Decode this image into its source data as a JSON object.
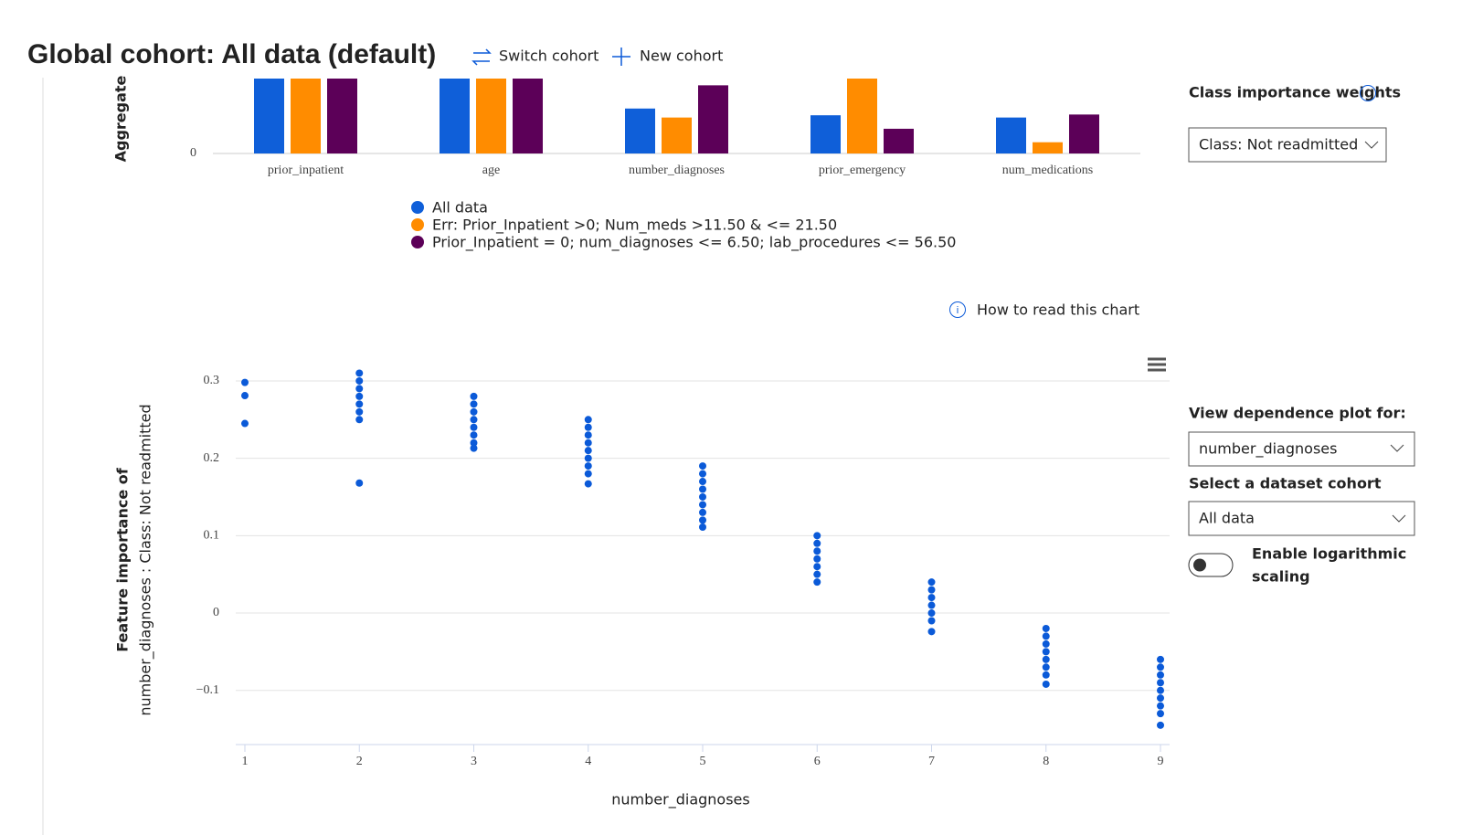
{
  "header": {
    "title": "Global cohort: All data (default)",
    "switch_cohort": "Switch cohort",
    "new_cohort": "New cohort"
  },
  "chart_data": [
    {
      "type": "bar",
      "y_label": "Aggregate",
      "categories": [
        "prior_inpatient",
        "age",
        "number_diagnoses",
        "prior_emergency",
        "num_medications"
      ],
      "ylim": [
        0,
        1
      ],
      "yticks": [
        0
      ],
      "series": [
        {
          "name": "All data",
          "color": "#0f5fd9",
          "values": [
            1,
            1,
            0.6,
            0.51,
            0.48
          ]
        },
        {
          "name": "Err: Prior_Inpatient >0; Num_meds >11.50 & <= 21.50",
          "color": "#ff8c00",
          "values": [
            1,
            1,
            0.48,
            1,
            0.15
          ]
        },
        {
          "name": "Prior_Inpatient = 0; num_diagnoses <= 6.50; lab_procedures <= 56.50",
          "color": "#5c0058",
          "values": [
            1,
            1,
            0.91,
            0.33,
            0.52
          ]
        }
      ]
    },
    {
      "type": "scatter",
      "help": "How to read this chart",
      "y_label": [
        "Feature importance of",
        "number_diagnoses : Class: Not readmitted"
      ],
      "x_label": "number_diagnoses",
      "color": "#0b5ad8",
      "grid": true,
      "xlim": [
        1,
        9
      ],
      "xticks": [
        1,
        2,
        3,
        4,
        5,
        6,
        7,
        8,
        9
      ],
      "ylim": [
        -0.17,
        0.32
      ],
      "yticks": [
        0.3,
        0.2,
        0.1,
        0,
        {
          "value": -0.1,
          "label": "−0.1"
        }
      ],
      "x": [
        1,
        1,
        1,
        2,
        2,
        2,
        2,
        2,
        2,
        2,
        2,
        3,
        3,
        3,
        3,
        3,
        3,
        3,
        3,
        4,
        4,
        4,
        4,
        4,
        4,
        4,
        4,
        4,
        5,
        5,
        5,
        5,
        5,
        5,
        5,
        5,
        5,
        6,
        6,
        6,
        6,
        6,
        6,
        6,
        7,
        7,
        7,
        7,
        7,
        7,
        7,
        8,
        8,
        8,
        8,
        8,
        8,
        8,
        8,
        9,
        9,
        9,
        9,
        9,
        9,
        9,
        9,
        9
      ],
      "values": [
        0.298,
        0.281,
        0.245,
        0.31,
        0.3,
        0.29,
        0.28,
        0.27,
        0.26,
        0.25,
        0.168,
        0.28,
        0.27,
        0.26,
        0.25,
        0.24,
        0.23,
        0.22,
        0.213,
        0.25,
        0.24,
        0.23,
        0.22,
        0.21,
        0.2,
        0.19,
        0.18,
        0.167,
        0.19,
        0.18,
        0.17,
        0.16,
        0.15,
        0.14,
        0.13,
        0.12,
        0.111,
        0.1,
        0.09,
        0.08,
        0.07,
        0.06,
        0.05,
        0.04,
        0.04,
        0.03,
        0.02,
        0.01,
        0,
        -0.01,
        -0.024,
        -0.02,
        -0.03,
        -0.04,
        -0.05,
        -0.06,
        -0.07,
        -0.08,
        -0.092,
        -0.06,
        -0.07,
        -0.08,
        -0.09,
        -0.1,
        -0.11,
        -0.12,
        -0.13,
        -0.145
      ]
    }
  ],
  "controls": {
    "class_weights_label": "Class importance weights",
    "class_weights_value": "Class: Not readmitted",
    "dependence_label": "View dependence plot for:",
    "dependence_value": "number_diagnoses",
    "cohort_label": "Select a dataset cohort",
    "cohort_value": "All data",
    "log_label": "Enable logarithmic scaling"
  }
}
